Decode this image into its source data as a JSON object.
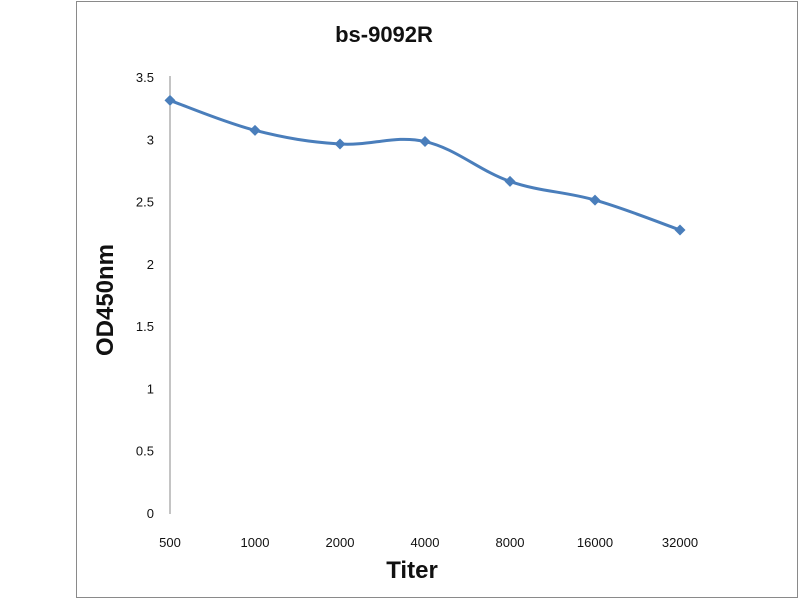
{
  "chart_data": {
    "type": "line",
    "title": "bs-9092R",
    "xlabel": "Titer",
    "ylabel": "OD450nm",
    "categories": [
      "500",
      "1000",
      "2000",
      "4000",
      "8000",
      "16000",
      "32000"
    ],
    "series": [
      {
        "values": [
          3.32,
          3.08,
          2.97,
          2.99,
          2.67,
          2.52,
          2.28
        ]
      }
    ],
    "y_ticks": [
      "0",
      "0.5",
      "1",
      "1.5",
      "2",
      "2.5",
      "3",
      "3.5"
    ],
    "ylim": [
      0,
      3.5
    ],
    "grid": false,
    "legend": "none",
    "line_color": "#4a7ebb",
    "marker": "diamond"
  }
}
